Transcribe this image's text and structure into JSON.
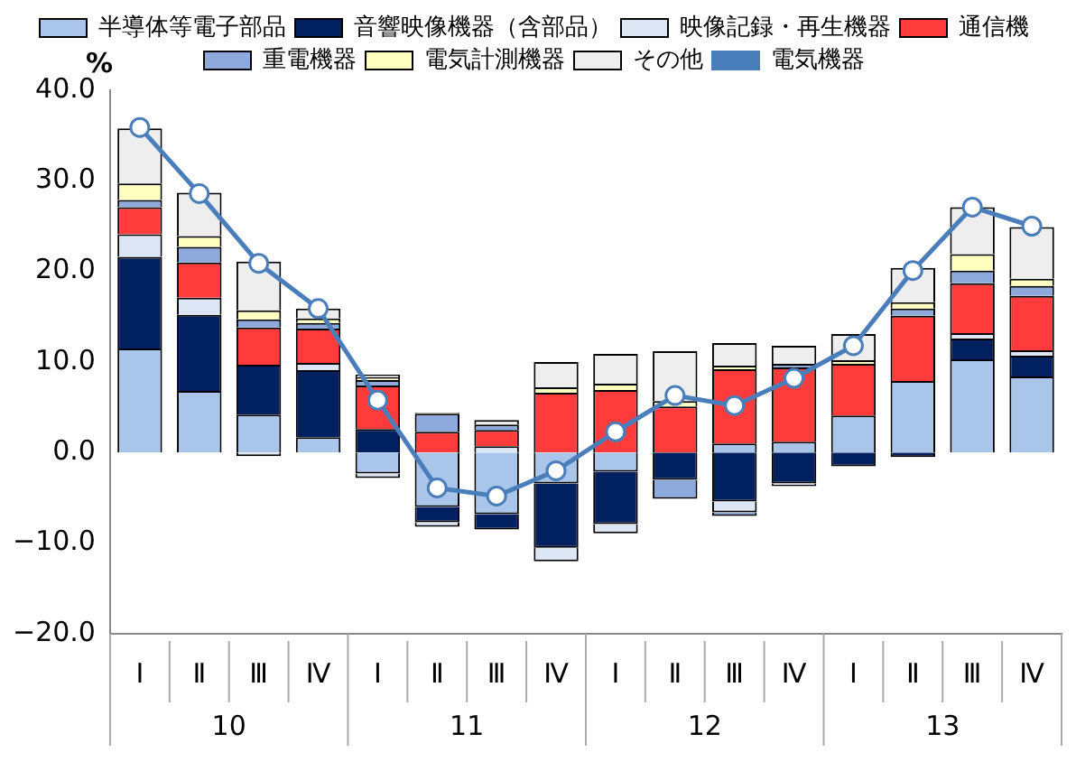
{
  "chart_data": {
    "type": "bar",
    "stacked": true,
    "ylabel": "%",
    "categories": [
      "Ⅰ",
      "Ⅱ",
      "Ⅲ",
      "Ⅳ",
      "Ⅰ",
      "Ⅱ",
      "Ⅲ",
      "Ⅳ",
      "Ⅰ",
      "Ⅱ",
      "Ⅲ",
      "Ⅳ",
      "Ⅰ",
      "Ⅱ",
      "Ⅲ",
      "Ⅳ"
    ],
    "annotations": [
      "10",
      "11",
      "12",
      "13"
    ],
    "series": [
      {
        "name": "半導体等電子部品",
        "color": "#a9c6ea",
        "values": [
          11.5,
          6.8,
          4.2,
          1.7,
          -2.3,
          -6.0,
          -6.8,
          -3.4,
          -2.1,
          null,
          1.0,
          1.2,
          4.1,
          7.9,
          10.3,
          8.4
        ]
      },
      {
        "name": "音響映像機器（含部品）",
        "color": "#002060",
        "values": [
          10.1,
          8.4,
          5.5,
          7.4,
          2.6,
          -1.7,
          -1.7,
          -7.1,
          -5.8,
          -3.0,
          -5.4,
          -3.4,
          -1.5,
          -0.5,
          2.3,
          2.3
        ]
      },
      {
        "name": "映像記録・再生機器",
        "color": "#dde6f4",
        "values": [
          2.5,
          1.9,
          -0.4,
          0.8,
          -0.5,
          -0.5,
          0.7,
          -1.5,
          -1.0,
          null,
          -1.2,
          -0.3,
          null,
          null,
          0.6,
          0.6
        ]
      },
      {
        "name": "通信機",
        "color": "#ff3b3b",
        "values": [
          3.0,
          3.9,
          4.1,
          3.8,
          4.8,
          2.3,
          1.8,
          6.6,
          6.9,
          5.1,
          8.2,
          8.2,
          5.7,
          7.2,
          5.5,
          6.0
        ]
      },
      {
        "name": "重電機器",
        "color": "#8ea9db",
        "values": [
          0.8,
          1.7,
          0.9,
          0.6,
          0.6,
          2.0,
          0.6,
          null,
          null,
          -2.1,
          -0.4,
          0.4,
          null,
          0.8,
          1.4,
          1.1
        ]
      },
      {
        "name": "電気計測機器",
        "color": "#ffffc0",
        "values": [
          1.8,
          1.2,
          1.0,
          0.5,
          0.3,
          null,
          null,
          0.6,
          0.7,
          0.6,
          0.4,
          null,
          0.4,
          0.7,
          1.8,
          0.8
        ]
      },
      {
        "name": "その他",
        "color": "#eeeeee",
        "values": [
          6.1,
          4.8,
          5.4,
          1.1,
          0.3,
          0.1,
          0.5,
          2.8,
          3.3,
          5.5,
          2.5,
          2.0,
          2.9,
          3.8,
          5.2,
          5.7
        ]
      },
      {
        "name": "電気機器",
        "type": "line",
        "color": "#4a7ebb",
        "marker": "circle",
        "values": [
          35.9,
          28.6,
          20.9,
          15.9,
          5.8,
          -3.9,
          -4.8,
          -2.0,
          2.3,
          6.3,
          5.2,
          8.2,
          11.8,
          20.1,
          27.1,
          25.0
        ]
      }
    ],
    "ylim": [
      -20,
      40
    ],
    "yticks": [
      {
        "value": -20,
        "label": "−20.0"
      },
      {
        "value": -10,
        "label": "−10.0"
      },
      {
        "value": 0,
        "label": "0.0"
      },
      {
        "value": 10,
        "label": "10.0"
      },
      {
        "value": 20,
        "label": "20.0"
      },
      {
        "value": 30,
        "label": "30.0"
      },
      {
        "value": 40,
        "label": "40.0"
      }
    ],
    "grid": false,
    "legend": "top"
  }
}
